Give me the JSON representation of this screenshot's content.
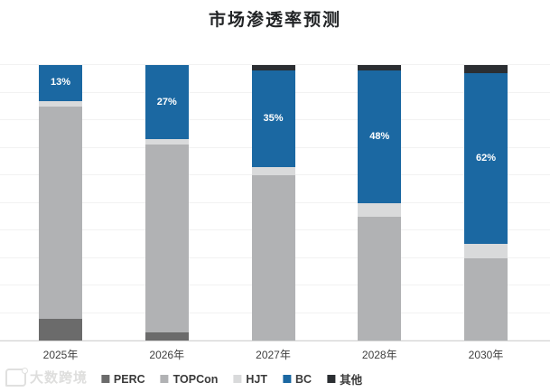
{
  "title": "市场渗透率预测",
  "watermark": {
    "text": "大数跨境"
  },
  "chart_data": {
    "type": "bar",
    "stacked": true,
    "percent_stacked": true,
    "title": "市场渗透率预测",
    "xlabel": "",
    "ylabel": "",
    "unit": "%",
    "ylim": [
      0,
      100
    ],
    "grid": true,
    "gridline_interval": 10,
    "legend_position": "bottom",
    "categories": [
      "2025年",
      "2026年",
      "2027年",
      "2028年",
      "2030年"
    ],
    "series": [
      {
        "name": "PERC",
        "color": "#6b6b6b",
        "values": [
          8,
          3,
          0,
          0,
          0
        ]
      },
      {
        "name": "TOPCon",
        "color": "#b1b2b4",
        "values": [
          77,
          68,
          60,
          45,
          30
        ]
      },
      {
        "name": "HJT",
        "color": "#d9dadb",
        "values": [
          2,
          2,
          3,
          5,
          5
        ]
      },
      {
        "name": "BC",
        "color": "#1b68a2",
        "values": [
          13,
          27,
          35,
          48,
          62
        ],
        "data_labels": [
          "13%",
          "27%",
          "35%",
          "48%",
          "62%"
        ]
      },
      {
        "name": "其他",
        "color": "#2b2e32",
        "values": [
          0,
          0,
          2,
          2,
          3
        ]
      }
    ]
  }
}
